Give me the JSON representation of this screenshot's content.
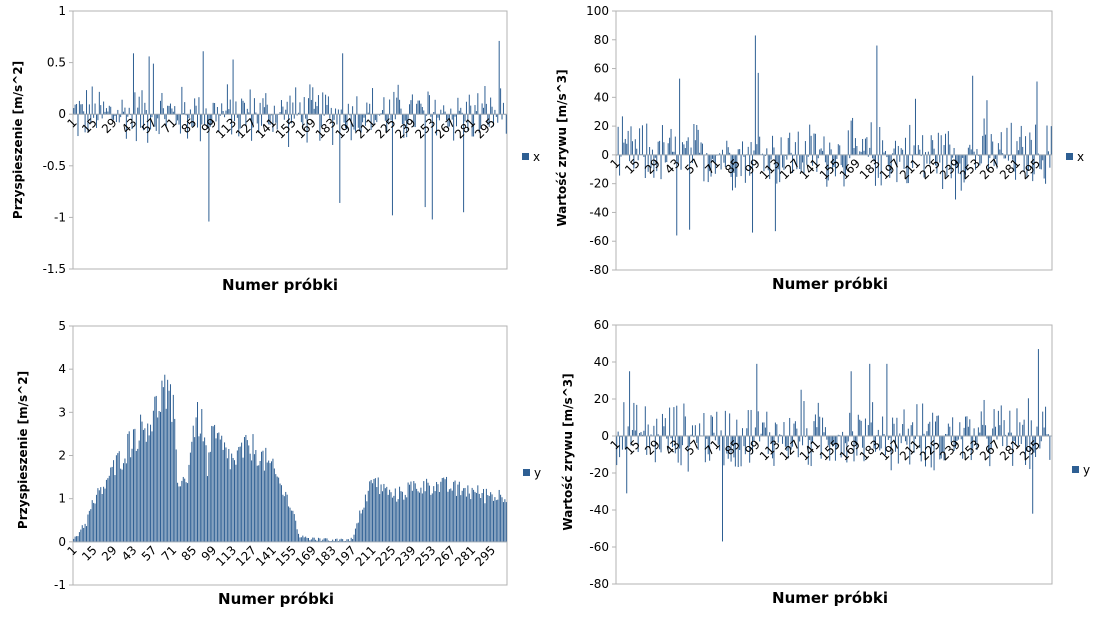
{
  "chart_data": [
    {
      "type": "bar",
      "xlabel": "Numer próbki",
      "ylabel": "Przyspieszenie [m/s^2]",
      "ylim": [
        -1.5,
        1
      ],
      "yticks": [
        -1.5,
        -1,
        -0.5,
        0,
        0.5,
        1
      ],
      "ytick_labels": [
        "-1.5",
        "-1",
        "-0.5",
        "0",
        "0.5",
        "1"
      ],
      "x": {
        "start": 1,
        "end": 305
      },
      "xtick_labels": [
        "1",
        "15",
        "29",
        "43",
        "57",
        "71",
        "85",
        "99",
        "113",
        "127",
        "141",
        "155",
        "169",
        "183",
        "197",
        "211",
        "225",
        "239",
        "253",
        "267",
        "281",
        "295"
      ],
      "series": [
        {
          "name": "x",
          "color": "#2e5f93",
          "profile": "noise",
          "amp": 0.35,
          "spikes": [
            [
              43,
              0.59
            ],
            [
              54,
              0.56
            ],
            [
              57,
              0.49
            ],
            [
              92,
              0.61
            ],
            [
              96,
              -1.04
            ],
            [
              113,
              0.53
            ],
            [
              188,
              -0.86
            ],
            [
              190,
              0.59
            ],
            [
              225,
              -0.98
            ],
            [
              248,
              -0.9
            ],
            [
              253,
              -1.02
            ],
            [
              275,
              -0.95
            ],
            [
              300,
              0.71
            ]
          ]
        }
      ],
      "legend": "right"
    },
    {
      "type": "bar",
      "xlabel": "Numer próbki",
      "ylabel": "Wartość zrywu [m/s^3]",
      "ylim": [
        -80,
        100
      ],
      "yticks": [
        -80,
        -60,
        -40,
        -20,
        0,
        20,
        40,
        60,
        80,
        100
      ],
      "ytick_labels": [
        "-80",
        "-60",
        "-40",
        "-20",
        "0",
        "20",
        "40",
        "60",
        "80",
        "100"
      ],
      "x": {
        "start": 1,
        "end": 305
      },
      "xtick_labels": [
        "1",
        "15",
        "29",
        "43",
        "57",
        "71",
        "85",
        "99",
        "113",
        "127",
        "141",
        "155",
        "169",
        "183",
        "197",
        "211",
        "225",
        "239",
        "253",
        "267",
        "281",
        "295"
      ],
      "series": [
        {
          "name": "x",
          "color": "#2e5f93",
          "profile": "noise",
          "amp": 28,
          "spikes": [
            [
              43,
              -56
            ],
            [
              45,
              53
            ],
            [
              52,
              -52
            ],
            [
              98,
              83
            ],
            [
              96,
              -54
            ],
            [
              100,
              57
            ],
            [
              112,
              -53
            ],
            [
              183,
              76
            ],
            [
              210,
              39
            ],
            [
              238,
              -31
            ],
            [
              250,
              55
            ],
            [
              260,
              38
            ],
            [
              295,
              51
            ]
          ]
        }
      ],
      "legend": "right"
    },
    {
      "type": "bar",
      "xlabel": "Numer próbki",
      "ylabel": "Przyspieszenie [m/s^2]",
      "ylim": [
        -1,
        5
      ],
      "yticks": [
        -1,
        0,
        1,
        2,
        3,
        4,
        5
      ],
      "ytick_labels": [
        "-1",
        "0",
        "1",
        "2",
        "3",
        "4",
        "5"
      ],
      "x": {
        "start": 1,
        "end": 305
      },
      "xtick_labels": [
        "1",
        "15",
        "29",
        "43",
        "57",
        "71",
        "85",
        "99",
        "113",
        "127",
        "141",
        "155",
        "169",
        "183",
        "197",
        "211",
        "225",
        "239",
        "253",
        "267",
        "281",
        "295"
      ],
      "series": [
        {
          "name": "y",
          "color": "#2e5f93",
          "profile": "envelope",
          "amp": 0.35,
          "envelope": [
            [
              1,
              0.1
            ],
            [
              10,
              0.6
            ],
            [
              15,
              1.1
            ],
            [
              29,
              2.0
            ],
            [
              43,
              2.9
            ],
            [
              57,
              3.4
            ],
            [
              64,
              4.2
            ],
            [
              71,
              3.5
            ],
            [
              74,
              1.8
            ],
            [
              80,
              1.6
            ],
            [
              85,
              3.1
            ],
            [
              90,
              3.4
            ],
            [
              95,
              2.1
            ],
            [
              99,
              2.9
            ],
            [
              113,
              2.2
            ],
            [
              120,
              2.5
            ],
            [
              127,
              2.6
            ],
            [
              141,
              2.0
            ],
            [
              150,
              1.3
            ],
            [
              155,
              0.9
            ],
            [
              160,
              0.15
            ],
            [
              183,
              0.1
            ],
            [
              197,
              0.1
            ],
            [
              204,
              1.0
            ],
            [
              211,
              1.7
            ],
            [
              225,
              1.3
            ],
            [
              239,
              1.5
            ],
            [
              253,
              1.6
            ],
            [
              267,
              1.5
            ],
            [
              281,
              1.4
            ],
            [
              295,
              1.3
            ],
            [
              305,
              1.3
            ]
          ]
        }
      ],
      "legend": "right"
    },
    {
      "type": "bar",
      "xlabel": "Numer próbki",
      "ylabel": "Wartość zrywu [m/s^3]",
      "ylim": [
        -80,
        60
      ],
      "yticks": [
        -80,
        -60,
        -40,
        -20,
        0,
        20,
        40,
        60
      ],
      "ytick_labels": [
        "-80",
        "-60",
        "-40",
        "-20",
        "0",
        "20",
        "40",
        "60"
      ],
      "x": {
        "start": 1,
        "end": 305
      },
      "xtick_labels": [
        "1",
        "15",
        "29",
        "43",
        "57",
        "71",
        "85",
        "99",
        "113",
        "127",
        "141",
        "155",
        "169",
        "183",
        "197",
        "211",
        "225",
        "239",
        "253",
        "267",
        "281",
        "295"
      ],
      "series": [
        {
          "name": "y",
          "color": "#2e5f93",
          "profile": "noise",
          "amp": 22,
          "spikes": [
            [
              8,
              -31
            ],
            [
              10,
              35
            ],
            [
              75,
              -57
            ],
            [
              99,
              39
            ],
            [
              130,
              25
            ],
            [
              165,
              35
            ],
            [
              178,
              39
            ],
            [
              190,
              39
            ],
            [
              292,
              -42
            ],
            [
              296,
              47
            ]
          ]
        }
      ],
      "legend": "right"
    }
  ]
}
